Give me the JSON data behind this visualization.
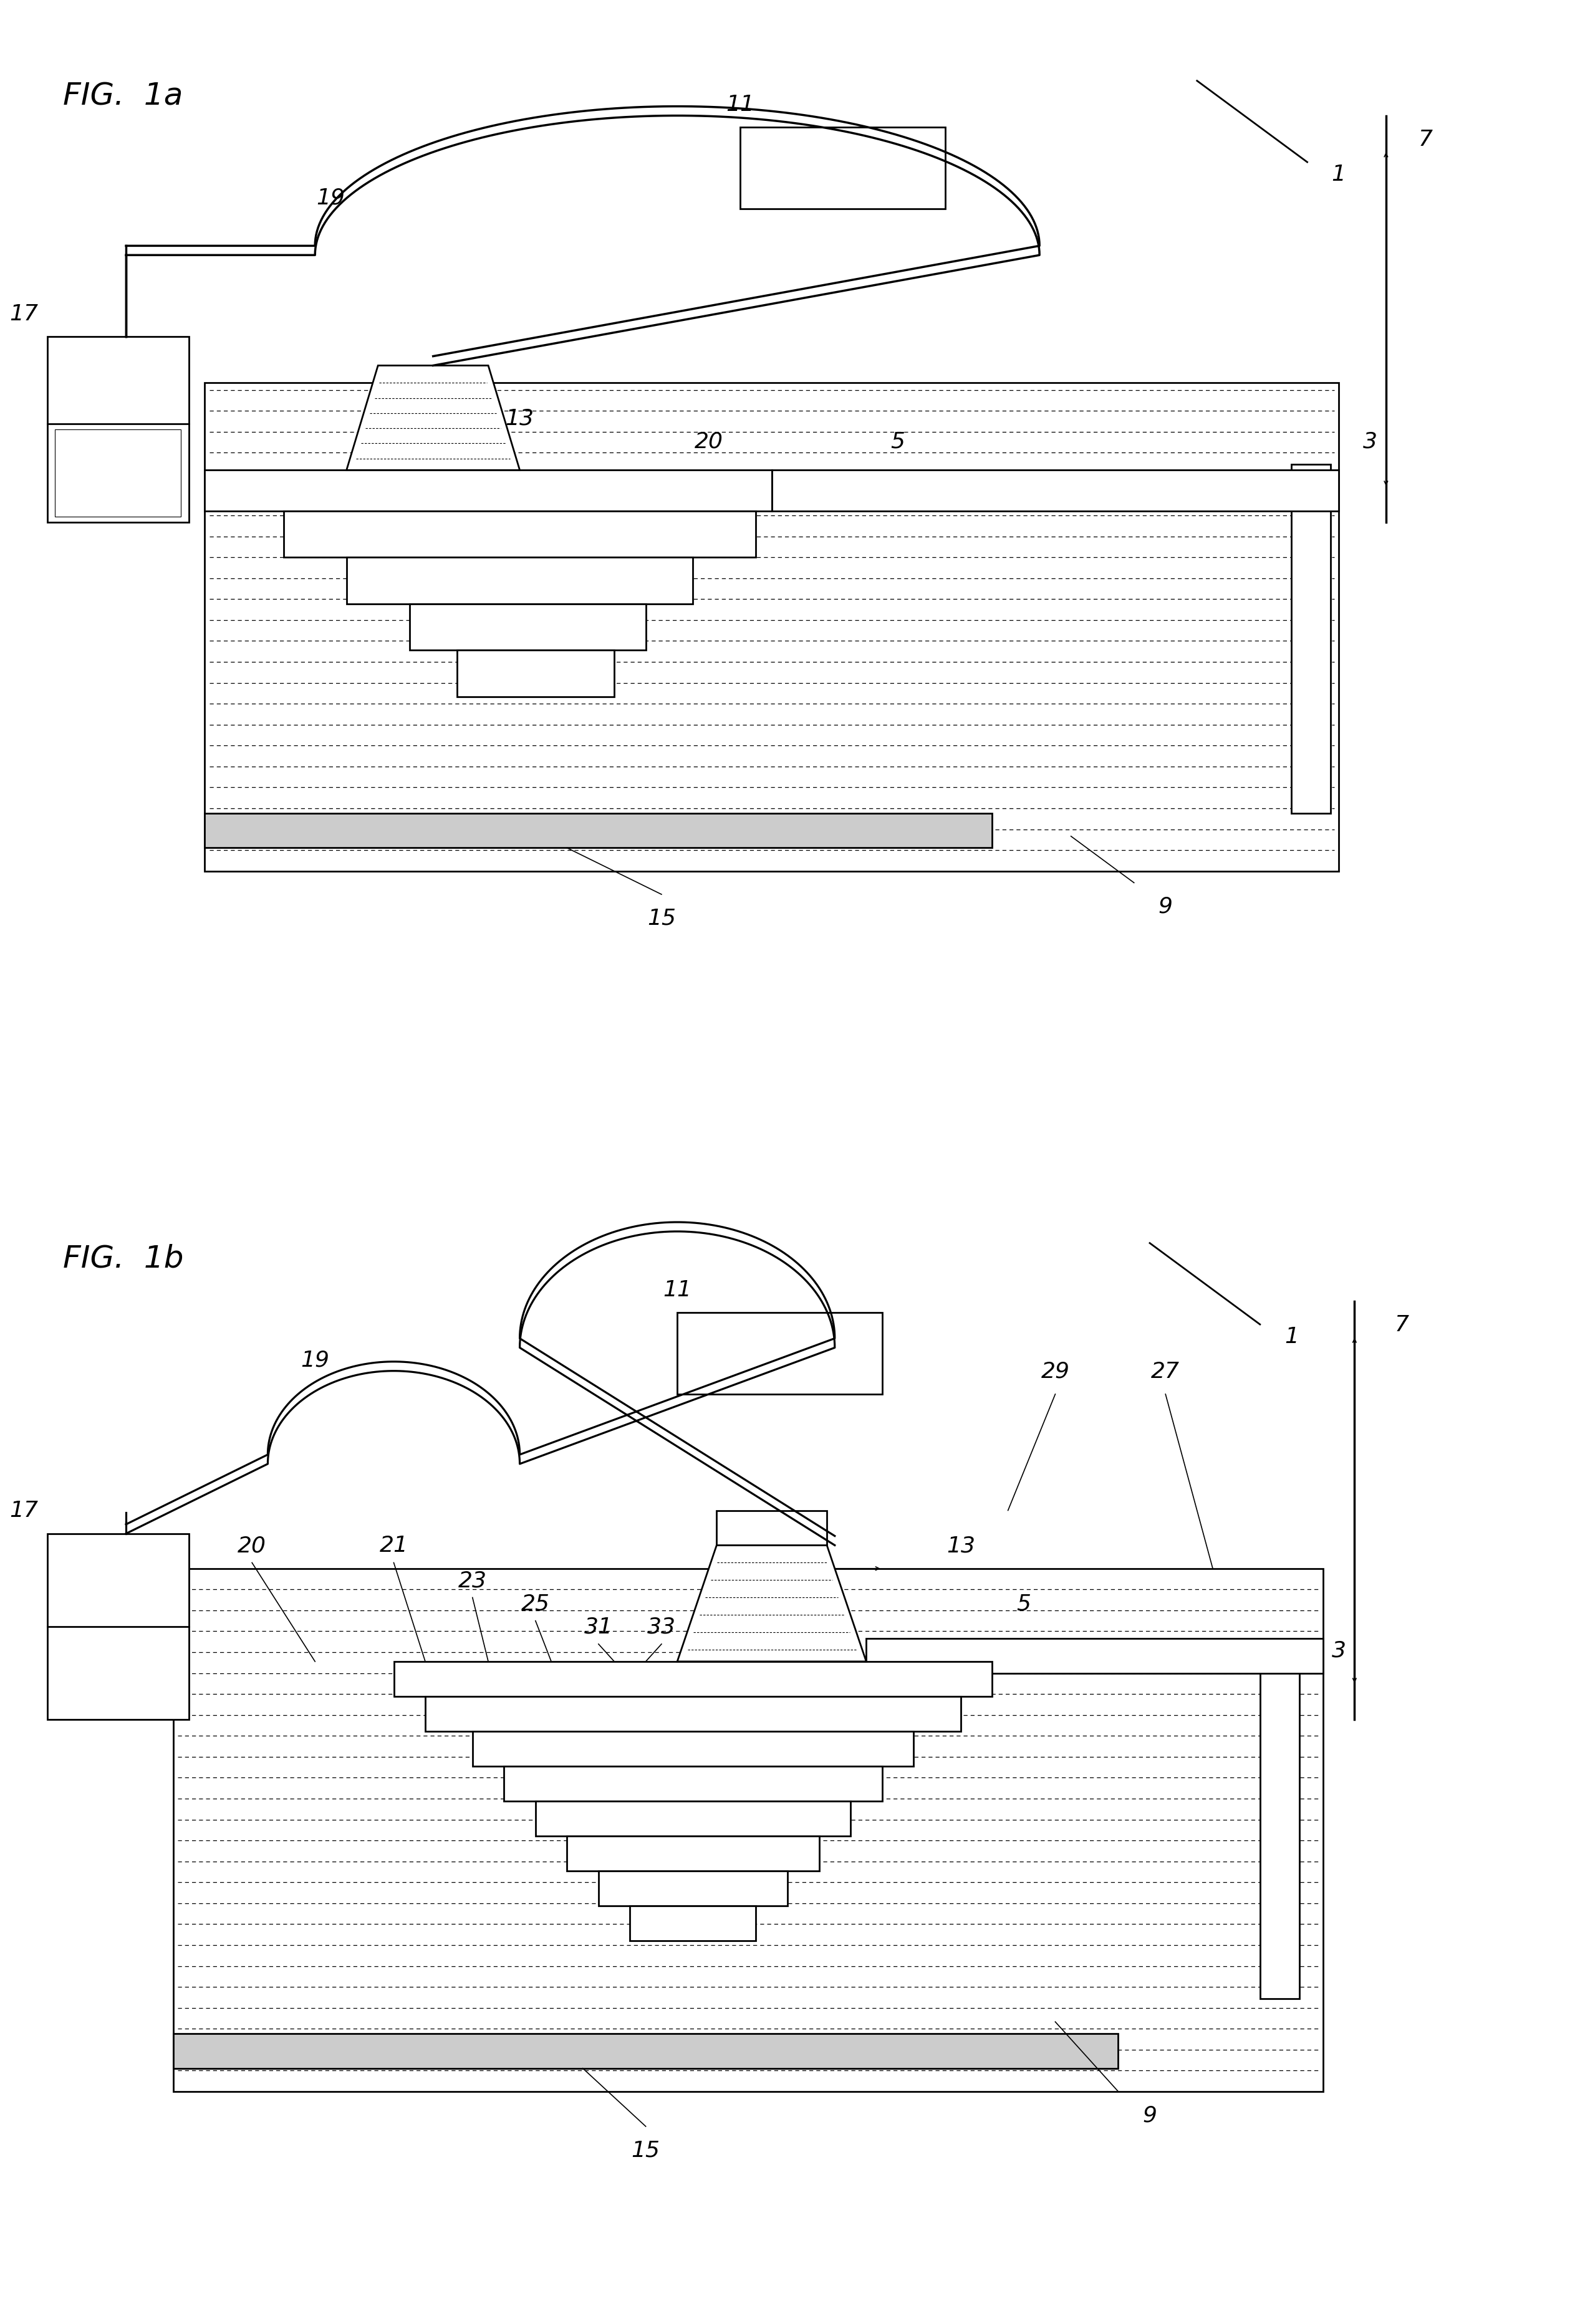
{
  "bg_color": "#ffffff",
  "fig_width": 25.26,
  "fig_height": 37.3,
  "fig1a_label": "FIG.  1a",
  "fig1b_label": "FIG.  1b",
  "label_fontsize": 36,
  "ref_fontsize": 26,
  "lw_main": 2.0,
  "lw_thin": 1.2,
  "lw_thick": 3.5
}
